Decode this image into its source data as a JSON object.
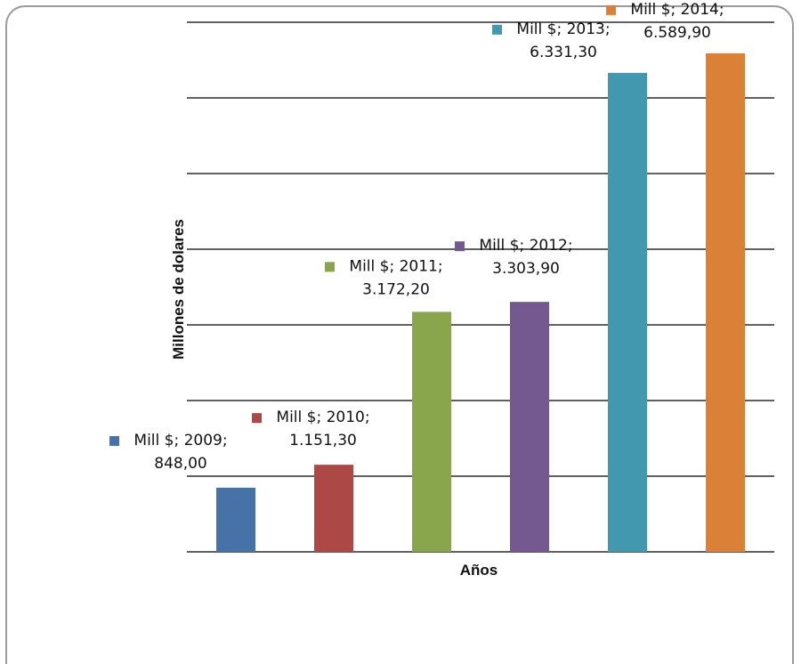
{
  "chart_data": {
    "type": "bar",
    "title": "",
    "xlabel": "Años",
    "ylabel": "Millones de dolares",
    "ylim": [
      0,
      7000
    ],
    "grid": true,
    "gridlines": [
      0,
      1000,
      2000,
      3000,
      4000,
      5000,
      6000,
      7000
    ],
    "categories": [
      "2009",
      "2010",
      "2011",
      "2012",
      "2013",
      "2014"
    ],
    "values": [
      848.0,
      1151.3,
      3172.2,
      3303.9,
      6331.3,
      6589.9
    ],
    "colors": [
      "#4672A8",
      "#AC4845",
      "#8AA64C",
      "#73598F",
      "#4198AF",
      "#DA8137"
    ],
    "data_labels": [
      {
        "line1": "Mill $; 2009;",
        "line2": "848,00"
      },
      {
        "line1": "Mill $; 2010;",
        "line2": "1.151,30"
      },
      {
        "line1": "Mill $; 2011;",
        "line2": "3.172,20"
      },
      {
        "line1": "Mill $; 2012;",
        "line2": "3.303,90"
      },
      {
        "line1": "Mill $; 2013;",
        "line2": "6.331,30"
      },
      {
        "line1": "Mill $; 2014;",
        "line2": "6.589,90"
      }
    ]
  }
}
